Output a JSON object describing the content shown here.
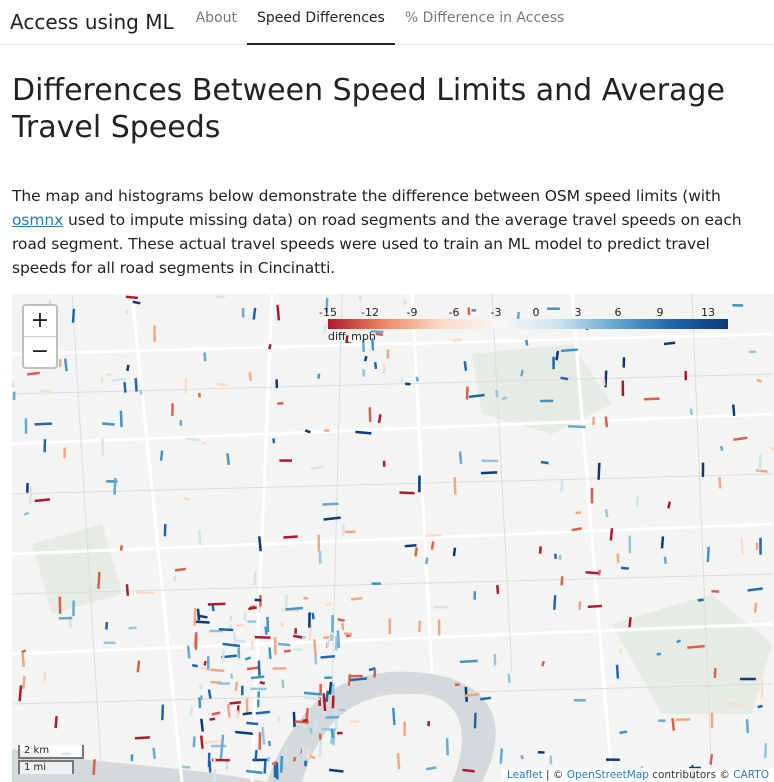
{
  "nav": {
    "brand": "Access using ML",
    "items": [
      {
        "label": "About",
        "active": false
      },
      {
        "label": "Speed Differences",
        "active": true
      },
      {
        "label": "% Difference in Access",
        "active": false
      }
    ]
  },
  "page": {
    "title": "Differences Between Speed Limits and Average Travel Speeds",
    "desc_before": "The map and histograms below demonstrate the difference between OSM speed limits (with ",
    "desc_link": "osmnx",
    "desc_after": " used to impute missing data) on road segments and the average travel speeds on each road segment. These actual travel speeds were used to train an ML model to predict travel speeds for all road segments in Cincinatti."
  },
  "map": {
    "zoom_in": "+",
    "zoom_out": "−",
    "legend": {
      "title": "diff_mph",
      "ticks": [
        "-15",
        "-12",
        "-9",
        "-6",
        "-3",
        "0",
        "3",
        "6",
        "9",
        "13"
      ]
    },
    "scale": {
      "km": "2 km",
      "mi": "1 mi"
    },
    "attribution": {
      "leaflet": "Leaflet",
      "sep": " | © ",
      "osm": "OpenStreetMap",
      "mid": " contributors © ",
      "carto": "CARTO"
    }
  },
  "colors": {
    "negative": "#b2182b",
    "neutral": "#f7f7f7",
    "positive": "#2166ac"
  }
}
